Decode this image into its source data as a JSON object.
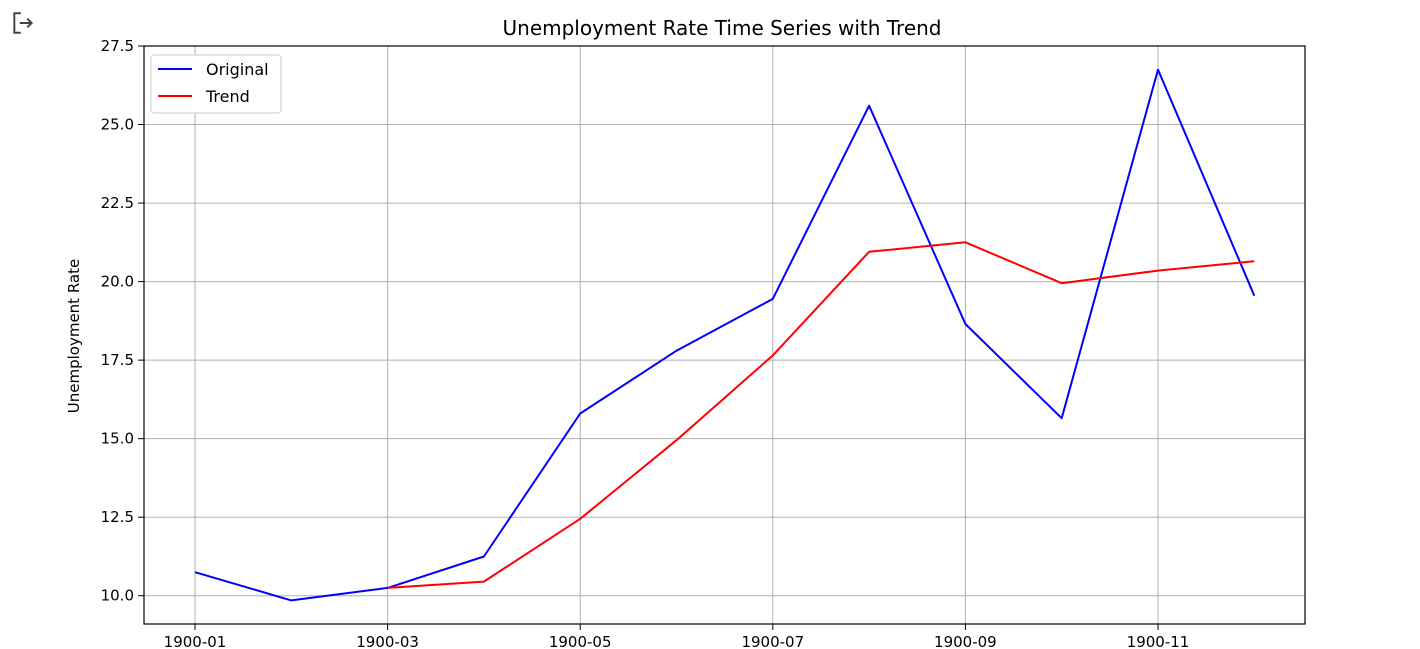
{
  "toolbar": {
    "exit_icon": "exit-icon"
  },
  "chart_data": {
    "type": "line",
    "title": "Unemployment Rate Time Series with Trend",
    "xlabel": "",
    "ylabel": "Unemployment Rate",
    "x": [
      "1900-01",
      "1900-02",
      "1900-03",
      "1900-04",
      "1900-05",
      "1900-06",
      "1900-07",
      "1900-08",
      "1900-09",
      "1900-10",
      "1900-11",
      "1900-12"
    ],
    "x_tick_labels": [
      "1900-01",
      "1900-03",
      "1900-05",
      "1900-07",
      "1900-09",
      "1900-11"
    ],
    "y_ticks": [
      "10.0",
      "12.5",
      "15.0",
      "17.5",
      "20.0",
      "22.5",
      "25.0",
      "27.5"
    ],
    "ylim": [
      9.1,
      27.5
    ],
    "grid": true,
    "legend_position": "top-left",
    "series": [
      {
        "name": "Original",
        "color": "#0000ff",
        "values": [
          10.75,
          9.85,
          10.25,
          11.25,
          15.8,
          17.8,
          19.45,
          25.6,
          18.65,
          15.65,
          26.75,
          19.55
        ]
      },
      {
        "name": "Trend",
        "color": "#ff0000",
        "values": [
          null,
          null,
          10.25,
          10.45,
          12.45,
          14.95,
          17.65,
          20.95,
          21.25,
          19.95,
          20.35,
          20.65
        ]
      }
    ]
  }
}
